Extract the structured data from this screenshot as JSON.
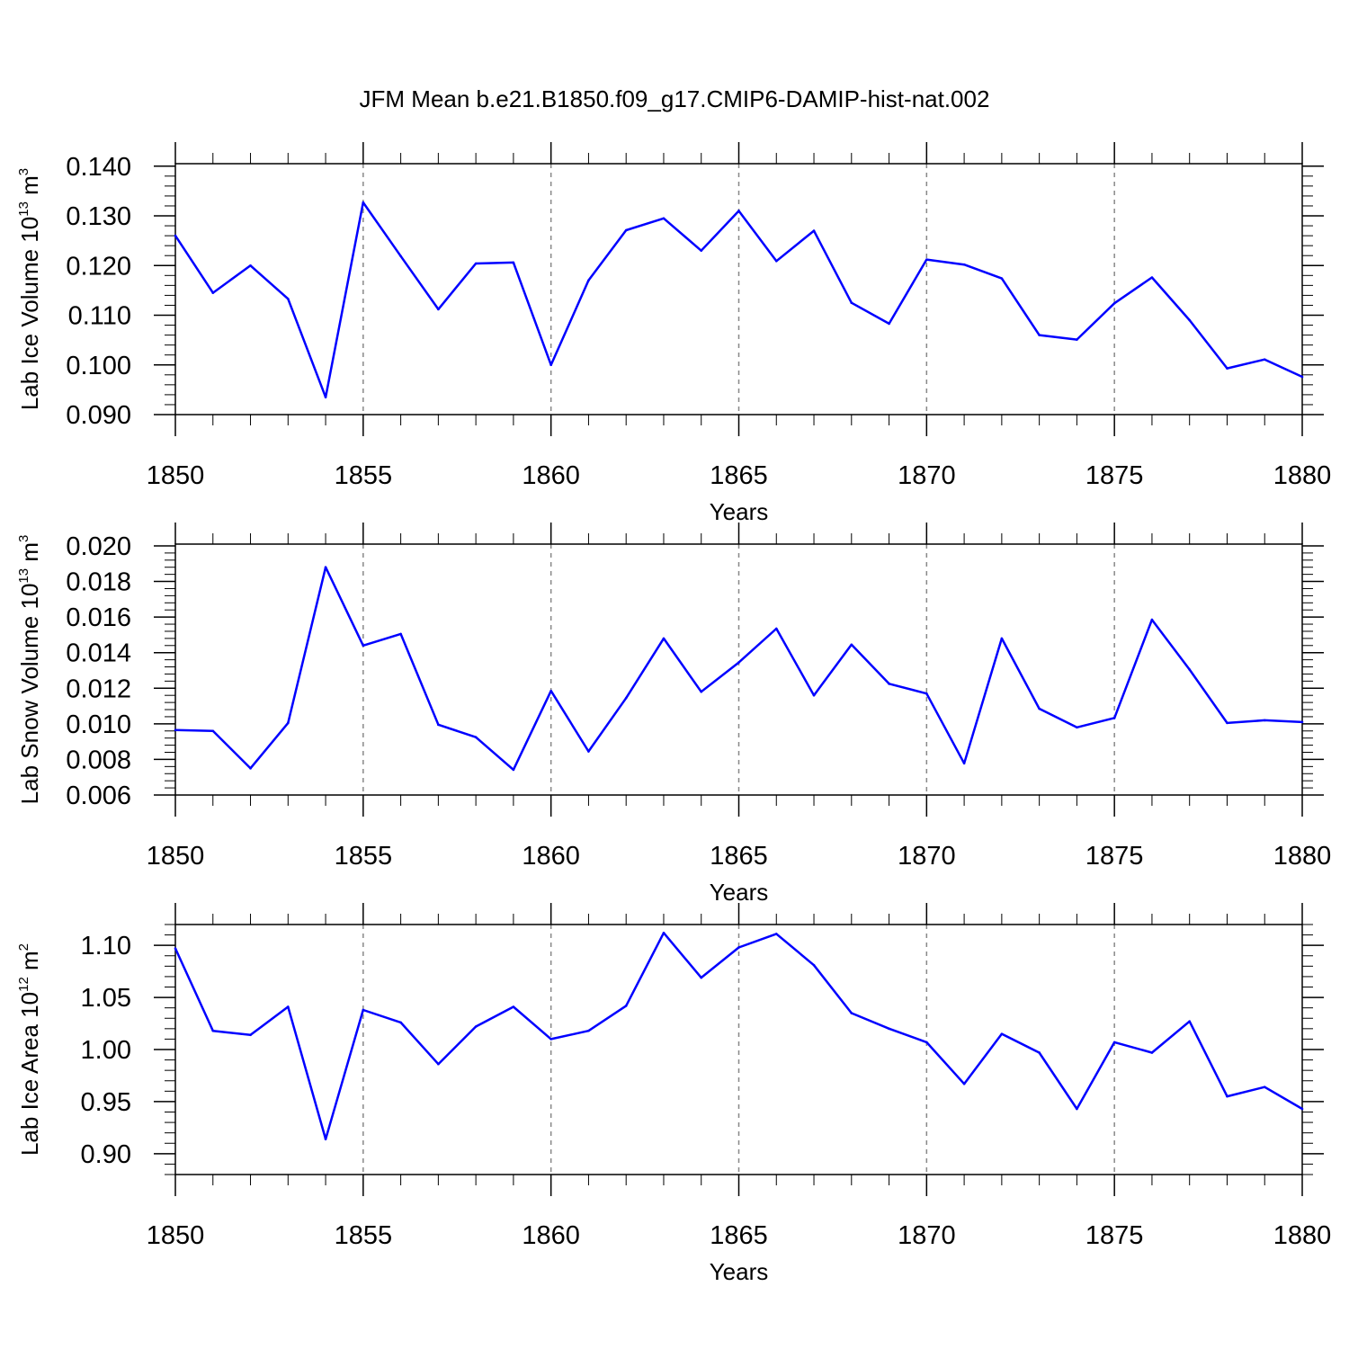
{
  "figure_title": "JFM Mean b.e21.B1850.f09_g17.CMIP6-DAMIP-hist-nat.002",
  "line_color": "#0000ff",
  "chart_data": [
    {
      "type": "line",
      "title": "JFM Mean b.e21.B1850.f09_g17.CMIP6-DAMIP-hist-nat.002",
      "xlabel": "Years",
      "ylabel": {
        "prefix": "Lab Ice Volume 10",
        "exp": "13",
        "unit": " m",
        "unit_exp": "3"
      },
      "xlim": [
        1850,
        1880
      ],
      "ylim": [
        0.09,
        0.1405
      ],
      "xticks": [
        1850,
        1855,
        1860,
        1865,
        1870,
        1875,
        1880
      ],
      "xtick_labels": [
        "1850",
        "1855",
        "1860",
        "1865",
        "1870",
        "1875",
        "1880"
      ],
      "yticks": [
        0.09,
        0.1,
        0.11,
        0.12,
        0.13,
        0.14
      ],
      "ytick_labels": [
        "0.090",
        "0.100",
        "0.110",
        "0.120",
        "0.130",
        "0.140"
      ],
      "grid": "vertical dashed at major x ticks",
      "series": [
        {
          "name": "Lab Ice Volume",
          "x": [
            1850,
            1851,
            1852,
            1853,
            1854,
            1855,
            1856,
            1857,
            1858,
            1859,
            1860,
            1861,
            1862,
            1863,
            1864,
            1865,
            1866,
            1867,
            1868,
            1869,
            1870,
            1871,
            1872,
            1873,
            1874,
            1875,
            1876,
            1877,
            1878,
            1879,
            1880
          ],
          "values": [
            0.126,
            0.1145,
            0.12,
            0.1133,
            0.0935,
            0.1327,
            0.1219,
            0.1112,
            0.1204,
            0.1206,
            0.1,
            0.117,
            0.1271,
            0.1295,
            0.123,
            0.131,
            0.1209,
            0.127,
            0.1125,
            0.1083,
            0.1212,
            0.1202,
            0.1174,
            0.106,
            0.1051,
            0.1124,
            0.1176,
            0.109,
            0.0993,
            0.1011,
            0.0976
          ]
        }
      ]
    },
    {
      "type": "line",
      "xlabel": "Years",
      "ylabel": {
        "prefix": "Lab Snow Volume 10",
        "exp": "13",
        "unit": " m",
        "unit_exp": "3"
      },
      "xlim": [
        1850,
        1880
      ],
      "ylim": [
        0.006,
        0.0201
      ],
      "xticks": [
        1850,
        1855,
        1860,
        1865,
        1870,
        1875,
        1880
      ],
      "xtick_labels": [
        "1850",
        "1855",
        "1860",
        "1865",
        "1870",
        "1875",
        "1880"
      ],
      "yticks": [
        0.006,
        0.008,
        0.01,
        0.012,
        0.014,
        0.016,
        0.018,
        0.02
      ],
      "ytick_labels": [
        "0.006",
        "0.008",
        "0.010",
        "0.012",
        "0.014",
        "0.016",
        "0.018",
        "0.020"
      ],
      "grid": "vertical dashed at major x ticks",
      "series": [
        {
          "name": "Lab Snow Volume",
          "x": [
            1850,
            1851,
            1852,
            1853,
            1854,
            1855,
            1856,
            1857,
            1858,
            1859,
            1860,
            1861,
            1862,
            1863,
            1864,
            1865,
            1866,
            1867,
            1868,
            1869,
            1870,
            1871,
            1872,
            1873,
            1874,
            1875,
            1876,
            1877,
            1878,
            1879,
            1880
          ],
          "values": [
            0.00965,
            0.0096,
            0.0075,
            0.01005,
            0.0188,
            0.0144,
            0.01505,
            0.00995,
            0.00925,
            0.00742,
            0.01185,
            0.00845,
            0.01145,
            0.0148,
            0.0118,
            0.01345,
            0.01535,
            0.0116,
            0.01445,
            0.01225,
            0.0117,
            0.00778,
            0.0148,
            0.01085,
            0.0098,
            0.01033,
            0.01585,
            0.01305,
            0.01005,
            0.0102,
            0.0101
          ]
        }
      ]
    },
    {
      "type": "line",
      "xlabel": "Years",
      "ylabel": {
        "prefix": "Lab Ice Area 10",
        "exp": "12",
        "unit": " m",
        "unit_exp": "2"
      },
      "xlim": [
        1850,
        1880
      ],
      "ylim": [
        0.88,
        1.12
      ],
      "xticks": [
        1850,
        1855,
        1860,
        1865,
        1870,
        1875,
        1880
      ],
      "xtick_labels": [
        "1850",
        "1855",
        "1860",
        "1865",
        "1870",
        "1875",
        "1880"
      ],
      "yticks": [
        0.9,
        0.95,
        1.0,
        1.05,
        1.1
      ],
      "ytick_labels": [
        "0.90",
        "0.95",
        "1.00",
        "1.05",
        "1.10"
      ],
      "grid": "vertical dashed at major x ticks",
      "series": [
        {
          "name": "Lab Ice Area",
          "x": [
            1850,
            1851,
            1852,
            1853,
            1854,
            1855,
            1856,
            1857,
            1858,
            1859,
            1860,
            1861,
            1862,
            1863,
            1864,
            1865,
            1866,
            1867,
            1868,
            1869,
            1870,
            1871,
            1872,
            1873,
            1874,
            1875,
            1876,
            1877,
            1878,
            1879,
            1880
          ],
          "values": [
            1.097,
            1.018,
            1.014,
            1.041,
            0.914,
            1.038,
            1.026,
            0.986,
            1.022,
            1.041,
            1.01,
            1.018,
            1.042,
            1.112,
            1.069,
            1.098,
            1.111,
            1.081,
            1.035,
            1.02,
            1.007,
            0.967,
            1.015,
            0.997,
            0.943,
            1.007,
            0.997,
            1.027,
            0.955,
            0.964,
            0.943
          ]
        }
      ]
    }
  ]
}
